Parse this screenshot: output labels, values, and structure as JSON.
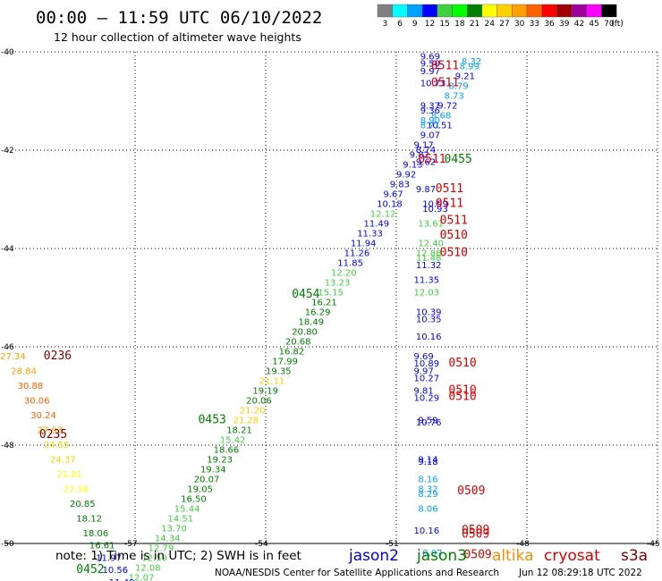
{
  "header": {
    "title": "00:00 – 11:59 UTC 06/10/2022",
    "subtitle": "12 hour collection of altimeter wave heights"
  },
  "scale": {
    "labels": [
      "3",
      "6",
      "9",
      "12",
      "15",
      "18",
      "21",
      "24",
      "27",
      "30",
      "33",
      "36",
      "39",
      "42",
      "45",
      "70"
    ],
    "unit": "(ft)",
    "colors": [
      "#808080",
      "#00ffff",
      "#00a0ff",
      "#0000ff",
      "#40d040",
      "#00ff00",
      "#008000",
      "#ffff00",
      "#ffd000",
      "#ffa000",
      "#ff6000",
      "#ff0000",
      "#a00000",
      "#a000a0",
      "#ff00ff",
      "#000000"
    ]
  },
  "footer": {
    "note": "note: 1) Time is in UTC; 2) SWH is in feet",
    "legend": [
      {
        "name": "jason2",
        "color": "#0000dd"
      },
      {
        "name": "jason3",
        "color": "#008000"
      },
      {
        "name": "altika",
        "color": "#ff8c00"
      },
      {
        "name": "cryosat",
        "color": "#dd0000"
      },
      {
        "name": "s3a",
        "color": "#800000"
      }
    ],
    "credit": "NOAA/NESDIS Center for Satellite Applications and Research",
    "timestamp": "Jun 12 08:29:18 UTC 2022"
  },
  "chart_data": {
    "type": "scatter",
    "x_ticks": [
      "-57",
      "-54",
      "-51",
      "-48",
      "-45"
    ],
    "y_ticks": [
      "-40",
      "-42",
      "-44",
      "-46",
      "-48",
      "-50"
    ],
    "xlim": [
      -60,
      -45
    ],
    "ylim": [
      -50,
      -40
    ],
    "grid": true,
    "time_labels": [
      {
        "text": "0511",
        "lon": -50.2,
        "lat": -40.35,
        "color": "#dd0000"
      },
      {
        "text": "0511",
        "lon": -50.2,
        "lat": -40.7,
        "color": "#dd0000"
      },
      {
        "text": "0455",
        "lon": -49.9,
        "lat": -42.25,
        "color": "#008000"
      },
      {
        "text": "0511",
        "lon": -50.5,
        "lat": -42.25,
        "color": "#dd0000"
      },
      {
        "text": "0511",
        "lon": -50.1,
        "lat": -42.85,
        "color": "#dd0000"
      },
      {
        "text": "0511",
        "lon": -50.1,
        "lat": -43.15,
        "color": "#dd0000"
      },
      {
        "text": "0511",
        "lon": -50.0,
        "lat": -43.5,
        "color": "#dd0000"
      },
      {
        "text": "0510",
        "lon": -50.0,
        "lat": -43.8,
        "color": "#dd0000"
      },
      {
        "text": "0510",
        "lon": -50.0,
        "lat": -44.15,
        "color": "#dd0000"
      },
      {
        "text": "0454",
        "lon": -53.4,
        "lat": -45.0,
        "color": "#008000"
      },
      {
        "text": "0236",
        "lon": -59.1,
        "lat": -46.25,
        "color": "#800000"
      },
      {
        "text": "0510",
        "lon": -49.8,
        "lat": -46.4,
        "color": "#dd0000"
      },
      {
        "text": "0510",
        "lon": -49.8,
        "lat": -46.95,
        "color": "#dd0000"
      },
      {
        "text": "0510",
        "lon": -49.8,
        "lat": -47.08,
        "color": "#dd0000"
      },
      {
        "text": "0453",
        "lon": -55.55,
        "lat": -47.55,
        "color": "#008000"
      },
      {
        "text": "0235",
        "lon": -59.2,
        "lat": -47.85,
        "color": "#800000"
      },
      {
        "text": "0509",
        "lon": -49.6,
        "lat": -49.0,
        "color": "#dd0000"
      },
      {
        "text": "0509",
        "lon": -49.5,
        "lat": -49.8,
        "color": "#dd0000"
      },
      {
        "text": "0509",
        "lon": -49.5,
        "lat": -49.88,
        "color": "#dd0000"
      },
      {
        "text": "0509",
        "lon": -49.45,
        "lat": -50.3,
        "color": "#dd0000"
      },
      {
        "text": "0452",
        "lon": -58.35,
        "lat": -50.6,
        "color": "#008000"
      }
    ],
    "points": [
      {
        "v": "8.32",
        "lon": -49.5,
        "lat": -40.25,
        "c": "#00a0ff"
      },
      {
        "v": "8.99",
        "lon": -49.55,
        "lat": -40.35,
        "c": "#00a0ff"
      },
      {
        "v": "9.21",
        "lon": -49.65,
        "lat": -40.55,
        "c": "#0000ff"
      },
      {
        "v": "8.79",
        "lon": -49.8,
        "lat": -40.75,
        "c": "#00a0ff"
      },
      {
        "v": "8.73",
        "lon": -49.9,
        "lat": -40.95,
        "c": "#00a0ff"
      },
      {
        "v": "9.72",
        "lon": -50.05,
        "lat": -41.15,
        "c": "#0000ff"
      },
      {
        "v": "8.68",
        "lon": -50.2,
        "lat": -41.35,
        "c": "#00a0ff"
      },
      {
        "v": "10.51",
        "lon": -50.3,
        "lat": -41.55,
        "c": "#0000ff"
      },
      {
        "v": "9.07",
        "lon": -50.45,
        "lat": -41.75,
        "c": "#0000ff"
      },
      {
        "v": "9.17",
        "lon": -50.6,
        "lat": -41.95,
        "c": "#0000ff"
      },
      {
        "v": "9.82",
        "lon": -50.7,
        "lat": -42.15,
        "c": "#0000ff"
      },
      {
        "v": "9.13",
        "lon": -50.85,
        "lat": -42.35,
        "c": "#0000ff"
      },
      {
        "v": "9.92",
        "lon": -51.0,
        "lat": -42.55,
        "c": "#0000ff"
      },
      {
        "v": "9.83",
        "lon": -51.15,
        "lat": -42.75,
        "c": "#0000ff"
      },
      {
        "v": "9.67",
        "lon": -51.3,
        "lat": -42.95,
        "c": "#0000ff"
      },
      {
        "v": "10.18",
        "lon": -51.45,
        "lat": -43.15,
        "c": "#0000ff"
      },
      {
        "v": "12.12",
        "lon": -51.6,
        "lat": -43.35,
        "c": "#40d040"
      },
      {
        "v": "11.49",
        "lon": -51.75,
        "lat": -43.55,
        "c": "#0000ff"
      },
      {
        "v": "11.33",
        "lon": -51.9,
        "lat": -43.75,
        "c": "#0000ff"
      },
      {
        "v": "11.94",
        "lon": -52.05,
        "lat": -43.95,
        "c": "#0000ff"
      },
      {
        "v": "11.26",
        "lon": -52.2,
        "lat": -44.15,
        "c": "#0000ff"
      },
      {
        "v": "11.85",
        "lon": -52.35,
        "lat": -44.35,
        "c": "#0000ff"
      },
      {
        "v": "12.20",
        "lon": -52.5,
        "lat": -44.55,
        "c": "#40d040"
      },
      {
        "v": "13.23",
        "lon": -52.65,
        "lat": -44.75,
        "c": "#40d040"
      },
      {
        "v": "15.15",
        "lon": -52.8,
        "lat": -44.95,
        "c": "#40d040"
      },
      {
        "v": "16.21",
        "lon": -52.95,
        "lat": -45.15,
        "c": "#008000"
      },
      {
        "v": "16.29",
        "lon": -53.1,
        "lat": -45.35,
        "c": "#008000"
      },
      {
        "v": "18.49",
        "lon": -53.25,
        "lat": -45.55,
        "c": "#008000"
      },
      {
        "v": "20.80",
        "lon": -53.4,
        "lat": -45.75,
        "c": "#008000"
      },
      {
        "v": "20.68",
        "lon": -53.55,
        "lat": -45.95,
        "c": "#008000"
      },
      {
        "v": "16.82",
        "lon": -53.7,
        "lat": -46.15,
        "c": "#008000"
      },
      {
        "v": "17.99",
        "lon": -53.85,
        "lat": -46.35,
        "c": "#008000"
      },
      {
        "v": "19.35",
        "lon": -54.0,
        "lat": -46.55,
        "c": "#008000"
      },
      {
        "v": "21.11",
        "lon": -54.15,
        "lat": -46.75,
        "c": "#ffd000"
      },
      {
        "v": "19.19",
        "lon": -54.3,
        "lat": -46.95,
        "c": "#008000"
      },
      {
        "v": "20.06",
        "lon": -54.45,
        "lat": -47.15,
        "c": "#008000"
      },
      {
        "v": "21.20",
        "lon": -54.6,
        "lat": -47.35,
        "c": "#ffd000"
      },
      {
        "v": "21.28",
        "lon": -54.75,
        "lat": -47.55,
        "c": "#ffd000"
      },
      {
        "v": "18.21",
        "lon": -54.9,
        "lat": -47.75,
        "c": "#008000"
      },
      {
        "v": "15.42",
        "lon": -55.05,
        "lat": -47.95,
        "c": "#40d040"
      },
      {
        "v": "18.66",
        "lon": -55.2,
        "lat": -48.15,
        "c": "#008000"
      },
      {
        "v": "19.23",
        "lon": -55.35,
        "lat": -48.35,
        "c": "#008000"
      },
      {
        "v": "19.34",
        "lon": -55.5,
        "lat": -48.55,
        "c": "#008000"
      },
      {
        "v": "20.07",
        "lon": -55.65,
        "lat": -48.75,
        "c": "#008000"
      },
      {
        "v": "19.05",
        "lon": -55.8,
        "lat": -48.95,
        "c": "#008000"
      },
      {
        "v": "16.50",
        "lon": -55.95,
        "lat": -49.15,
        "c": "#008000"
      },
      {
        "v": "15.44",
        "lon": -56.1,
        "lat": -49.35,
        "c": "#40d040"
      },
      {
        "v": "14.51",
        "lon": -56.25,
        "lat": -49.55,
        "c": "#40d040"
      },
      {
        "v": "13.70",
        "lon": -56.4,
        "lat": -49.75,
        "c": "#40d040"
      },
      {
        "v": "14.34",
        "lon": -56.55,
        "lat": -49.95,
        "c": "#40d040"
      },
      {
        "v": "12.79",
        "lon": -56.7,
        "lat": -50.15,
        "c": "#40d040"
      },
      {
        "v": "12.59",
        "lon": -56.85,
        "lat": -50.35,
        "c": "#40d040"
      },
      {
        "v": "12.08",
        "lon": -57.0,
        "lat": -50.55,
        "c": "#40d040"
      },
      {
        "v": "12.07",
        "lon": -57.15,
        "lat": -50.75,
        "c": "#40d040"
      },
      {
        "v": "11.59",
        "lon": -57.3,
        "lat": -50.95,
        "c": "#0000ff"
      },
      {
        "v": "9.69",
        "lon": -50.45,
        "lat": -40.15,
        "c": "#0000ff"
      },
      {
        "v": "9.50",
        "lon": -50.45,
        "lat": -40.3,
        "c": "#0000ff"
      },
      {
        "v": "9.97",
        "lon": -50.45,
        "lat": -40.45,
        "c": "#0000ff"
      },
      {
        "v": "10.73",
        "lon": -50.45,
        "lat": -40.7,
        "c": "#0000ff"
      },
      {
        "v": "9.37",
        "lon": -50.45,
        "lat": -41.15,
        "c": "#0000ff"
      },
      {
        "v": "9.36",
        "lon": -50.45,
        "lat": -41.25,
        "c": "#0000ff"
      },
      {
        "v": "8.90",
        "lon": -50.45,
        "lat": -41.45,
        "c": "#00a0ff"
      },
      {
        "v": "8.71",
        "lon": -50.45,
        "lat": -41.55,
        "c": "#00a0ff"
      },
      {
        "v": "8.74",
        "lon": -50.55,
        "lat": -42.05,
        "c": "#0000ff"
      },
      {
        "v": "9.62",
        "lon": -50.55,
        "lat": -42.3,
        "c": "#0000ff"
      },
      {
        "v": "9.87",
        "lon": -50.55,
        "lat": -42.85,
        "c": "#0000ff"
      },
      {
        "v": "10.99",
        "lon": -50.4,
        "lat": -43.15,
        "c": "#0000ff"
      },
      {
        "v": "10.93",
        "lon": -50.4,
        "lat": -43.25,
        "c": "#0000ff"
      },
      {
        "v": "13.61",
        "lon": -50.5,
        "lat": -43.55,
        "c": "#40d040"
      },
      {
        "v": "12.40",
        "lon": -50.5,
        "lat": -43.95,
        "c": "#40d040"
      },
      {
        "v": "12.88",
        "lon": -50.55,
        "lat": -44.15,
        "c": "#40d040"
      },
      {
        "v": "11.48",
        "lon": -50.55,
        "lat": -44.25,
        "c": "#40d040"
      },
      {
        "v": "11.32",
        "lon": -50.55,
        "lat": -44.4,
        "c": "#0000ff"
      },
      {
        "v": "11.35",
        "lon": -50.6,
        "lat": -44.7,
        "c": "#0000ff"
      },
      {
        "v": "12.03",
        "lon": -50.6,
        "lat": -44.95,
        "c": "#40d040"
      },
      {
        "v": "10.39",
        "lon": -50.55,
        "lat": -45.35,
        "c": "#0000ff"
      },
      {
        "v": "10.35",
        "lon": -50.55,
        "lat": -45.5,
        "c": "#0000ff"
      },
      {
        "v": "10.16",
        "lon": -50.55,
        "lat": -45.85,
        "c": "#0000ff"
      },
      {
        "v": "9.69",
        "lon": -50.6,
        "lat": -46.25,
        "c": "#0000ff"
      },
      {
        "v": "10.89",
        "lon": -50.6,
        "lat": -46.4,
        "c": "#0000ff"
      },
      {
        "v": "9.97",
        "lon": -50.6,
        "lat": -46.55,
        "c": "#0000ff"
      },
      {
        "v": "10.27",
        "lon": -50.6,
        "lat": -46.7,
        "c": "#0000ff"
      },
      {
        "v": "9.81",
        "lon": -50.6,
        "lat": -46.95,
        "c": "#0000ff"
      },
      {
        "v": "10.29",
        "lon": -50.6,
        "lat": -47.1,
        "c": "#0000ff"
      },
      {
        "v": "9.59",
        "lon": -50.5,
        "lat": -47.55,
        "c": "#0000ff"
      },
      {
        "v": "10.76",
        "lon": -50.55,
        "lat": -47.6,
        "c": "#0000ff"
      },
      {
        "v": "9.14",
        "lon": -50.5,
        "lat": -48.35,
        "c": "#0000ff"
      },
      {
        "v": "9.18",
        "lon": -50.5,
        "lat": -48.4,
        "c": "#0000ff"
      },
      {
        "v": "8.16",
        "lon": -50.5,
        "lat": -48.75,
        "c": "#00a0ff"
      },
      {
        "v": "8.32",
        "lon": -50.5,
        "lat": -48.95,
        "c": "#00a0ff"
      },
      {
        "v": "8.29",
        "lon": -50.5,
        "lat": -49.05,
        "c": "#00a0ff"
      },
      {
        "v": "8.06",
        "lon": -50.5,
        "lat": -49.35,
        "c": "#00a0ff"
      },
      {
        "v": "10.16",
        "lon": -50.6,
        "lat": -49.8,
        "c": "#0000ff"
      },
      {
        "v": "8.07",
        "lon": -50.4,
        "lat": -50.25,
        "c": "#00a0ff"
      },
      {
        "v": "27.34",
        "lon": -60.1,
        "lat": -46.25,
        "c": "#ffa000"
      },
      {
        "v": "28.84",
        "lon": -59.85,
        "lat": -46.55,
        "c": "#ffa000"
      },
      {
        "v": "30.88",
        "lon": -59.7,
        "lat": -46.85,
        "c": "#ff6000"
      },
      {
        "v": "30.06",
        "lon": -59.55,
        "lat": -47.15,
        "c": "#ff6000"
      },
      {
        "v": "30.24",
        "lon": -59.4,
        "lat": -47.45,
        "c": "#ff6000"
      },
      {
        "v": "27.93",
        "lon": -59.25,
        "lat": -47.75,
        "c": "#ffa000"
      },
      {
        "v": "24.55",
        "lon": -59.1,
        "lat": -48.05,
        "c": "#ffd000"
      },
      {
        "v": "24.37",
        "lon": -58.95,
        "lat": -48.35,
        "c": "#ffd000"
      },
      {
        "v": "21.81",
        "lon": -58.8,
        "lat": -48.65,
        "c": "#ffff00"
      },
      {
        "v": "22.58",
        "lon": -58.65,
        "lat": -48.95,
        "c": "#ffff00"
      },
      {
        "v": "20.85",
        "lon": -58.5,
        "lat": -49.25,
        "c": "#008000"
      },
      {
        "v": "18.12",
        "lon": -58.35,
        "lat": -49.55,
        "c": "#008000"
      },
      {
        "v": "18.06",
        "lon": -58.2,
        "lat": -49.85,
        "c": "#008000"
      },
      {
        "v": "16.61",
        "lon": -58.05,
        "lat": -50.1,
        "c": "#008000"
      },
      {
        "v": "11.97",
        "lon": -57.9,
        "lat": -50.35,
        "c": "#0000ff"
      },
      {
        "v": "10.56",
        "lon": -57.75,
        "lat": -50.6,
        "c": "#0000ff"
      },
      {
        "v": "11.49",
        "lon": -57.6,
        "lat": -50.85,
        "c": "#0000ff"
      }
    ]
  }
}
